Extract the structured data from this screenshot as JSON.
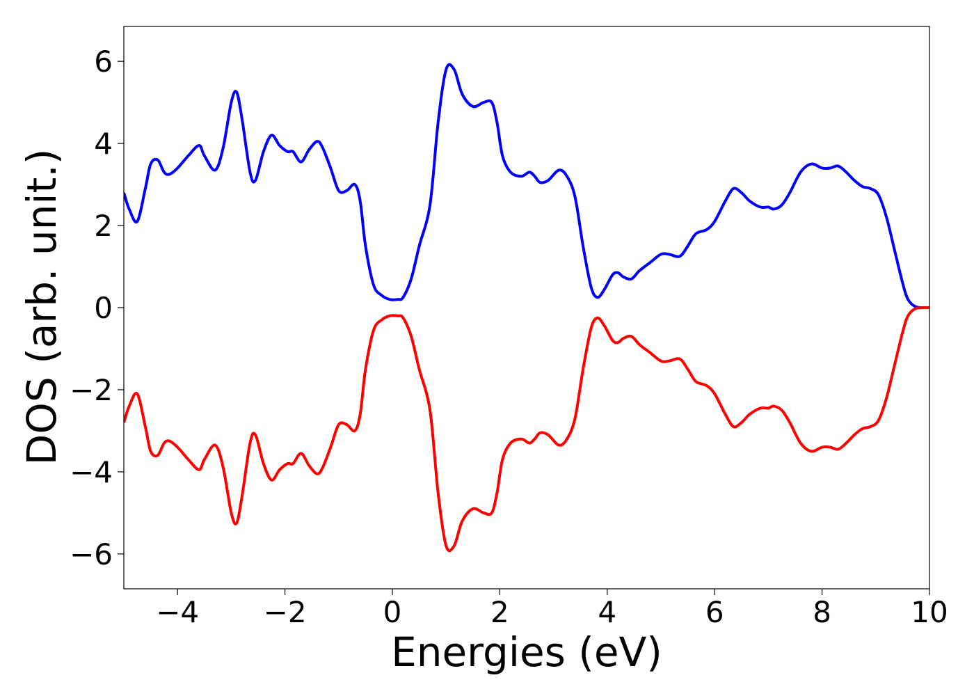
{
  "chart_data": {
    "type": "line",
    "title": "",
    "xlabel": "Energies (eV)",
    "ylabel": "DOS (arb. unit.)",
    "xlim": [
      -5,
      10
    ],
    "ylim": [
      -6.85,
      6.85
    ],
    "xticks": [
      -4,
      -2,
      0,
      2,
      4,
      6,
      8,
      10
    ],
    "yticks": [
      -6,
      -4,
      -2,
      0,
      2,
      4,
      6
    ],
    "xtick_labels": [
      "−4",
      "−2",
      "0",
      "2",
      "4",
      "6",
      "8",
      "10"
    ],
    "ytick_labels": [
      "−6",
      "−4",
      "−2",
      "0",
      "2",
      "4",
      "6"
    ],
    "grid": false,
    "legend": "none",
    "series": [
      {
        "color": "#0000ff",
        "x": [
          -5.0,
          -4.9,
          -4.75,
          -4.6,
          -4.5,
          -4.37,
          -4.25,
          -4.15,
          -4.0,
          -3.8,
          -3.6,
          -3.5,
          -3.3,
          -3.15,
          -3.0,
          -2.9,
          -2.8,
          -2.65,
          -2.55,
          -2.4,
          -2.25,
          -2.1,
          -1.95,
          -1.85,
          -1.7,
          -1.55,
          -1.4,
          -1.3,
          -1.15,
          -1.0,
          -0.85,
          -0.7,
          -0.6,
          -0.5,
          -0.35,
          -0.2,
          -0.05,
          0.1,
          0.2,
          0.35,
          0.5,
          0.7,
          0.85,
          1.0,
          1.15,
          1.3,
          1.5,
          1.7,
          1.85,
          1.95,
          2.05,
          2.2,
          2.4,
          2.55,
          2.65,
          2.75,
          2.9,
          3.1,
          3.25,
          3.4,
          3.55,
          3.7,
          3.82,
          3.95,
          4.1,
          4.2,
          4.3,
          4.45,
          4.6,
          4.8,
          5.0,
          5.15,
          5.35,
          5.5,
          5.65,
          5.85,
          6.0,
          6.2,
          6.35,
          6.5,
          6.65,
          6.85,
          7.0,
          7.1,
          7.25,
          7.4,
          7.6,
          7.8,
          8.0,
          8.15,
          8.3,
          8.45,
          8.6,
          8.75,
          8.9,
          9.05,
          9.2,
          9.35,
          9.5,
          9.6,
          9.75,
          10.0
        ],
        "y": [
          2.8,
          2.4,
          2.1,
          2.9,
          3.5,
          3.6,
          3.3,
          3.25,
          3.4,
          3.7,
          3.95,
          3.7,
          3.35,
          3.9,
          5.0,
          5.25,
          4.6,
          3.3,
          3.1,
          3.8,
          4.2,
          3.95,
          3.8,
          3.8,
          3.55,
          3.85,
          4.05,
          3.9,
          3.4,
          2.85,
          2.85,
          3.0,
          2.6,
          1.5,
          0.55,
          0.3,
          0.2,
          0.2,
          0.25,
          0.7,
          1.5,
          2.5,
          4.5,
          5.8,
          5.8,
          5.2,
          4.9,
          5.0,
          5.0,
          4.5,
          3.7,
          3.3,
          3.2,
          3.3,
          3.2,
          3.05,
          3.1,
          3.35,
          3.2,
          2.7,
          1.5,
          0.5,
          0.25,
          0.45,
          0.8,
          0.85,
          0.75,
          0.7,
          0.9,
          1.1,
          1.3,
          1.3,
          1.25,
          1.5,
          1.8,
          1.9,
          2.1,
          2.6,
          2.9,
          2.8,
          2.6,
          2.45,
          2.45,
          2.4,
          2.5,
          2.8,
          3.3,
          3.5,
          3.4,
          3.4,
          3.45,
          3.3,
          3.1,
          2.95,
          2.9,
          2.75,
          2.2,
          1.4,
          0.6,
          0.2,
          0.02,
          0.0
        ]
      },
      {
        "color": "#ff0000",
        "x": [
          -5.0,
          -4.9,
          -4.75,
          -4.6,
          -4.5,
          -4.37,
          -4.25,
          -4.15,
          -4.0,
          -3.8,
          -3.6,
          -3.5,
          -3.3,
          -3.15,
          -3.0,
          -2.9,
          -2.8,
          -2.65,
          -2.55,
          -2.4,
          -2.25,
          -2.1,
          -1.95,
          -1.85,
          -1.7,
          -1.55,
          -1.4,
          -1.3,
          -1.15,
          -1.0,
          -0.85,
          -0.7,
          -0.6,
          -0.5,
          -0.35,
          -0.2,
          -0.05,
          0.1,
          0.2,
          0.35,
          0.5,
          0.7,
          0.85,
          1.0,
          1.15,
          1.3,
          1.5,
          1.7,
          1.85,
          1.95,
          2.05,
          2.2,
          2.4,
          2.55,
          2.65,
          2.75,
          2.9,
          3.1,
          3.25,
          3.4,
          3.55,
          3.7,
          3.82,
          3.95,
          4.1,
          4.2,
          4.3,
          4.45,
          4.6,
          4.8,
          5.0,
          5.15,
          5.35,
          5.5,
          5.65,
          5.85,
          6.0,
          6.2,
          6.35,
          6.5,
          6.65,
          6.85,
          7.0,
          7.1,
          7.25,
          7.4,
          7.6,
          7.8,
          8.0,
          8.15,
          8.3,
          8.45,
          8.6,
          8.75,
          8.9,
          9.05,
          9.2,
          9.35,
          9.5,
          9.6,
          9.75,
          10.0
        ],
        "y": [
          -2.8,
          -2.4,
          -2.1,
          -2.9,
          -3.5,
          -3.6,
          -3.3,
          -3.25,
          -3.4,
          -3.7,
          -3.95,
          -3.7,
          -3.35,
          -3.9,
          -5.0,
          -5.25,
          -4.6,
          -3.3,
          -3.1,
          -3.8,
          -4.2,
          -3.95,
          -3.8,
          -3.8,
          -3.55,
          -3.85,
          -4.05,
          -3.9,
          -3.4,
          -2.85,
          -2.85,
          -3.0,
          -2.6,
          -1.5,
          -0.55,
          -0.3,
          -0.2,
          -0.2,
          -0.25,
          -0.7,
          -1.5,
          -2.5,
          -4.5,
          -5.8,
          -5.8,
          -5.2,
          -4.9,
          -5.0,
          -5.0,
          -4.5,
          -3.7,
          -3.3,
          -3.2,
          -3.3,
          -3.2,
          -3.05,
          -3.1,
          -3.35,
          -3.2,
          -2.7,
          -1.5,
          -0.5,
          -0.25,
          -0.45,
          -0.8,
          -0.85,
          -0.75,
          -0.7,
          -0.9,
          -1.1,
          -1.3,
          -1.3,
          -1.25,
          -1.5,
          -1.8,
          -1.9,
          -2.1,
          -2.6,
          -2.9,
          -2.8,
          -2.6,
          -2.45,
          -2.45,
          -2.4,
          -2.5,
          -2.8,
          -3.3,
          -3.5,
          -3.4,
          -3.4,
          -3.45,
          -3.3,
          -3.1,
          -2.95,
          -2.9,
          -2.75,
          -2.2,
          -1.4,
          -0.6,
          -0.2,
          -0.02,
          0.0
        ]
      }
    ]
  }
}
